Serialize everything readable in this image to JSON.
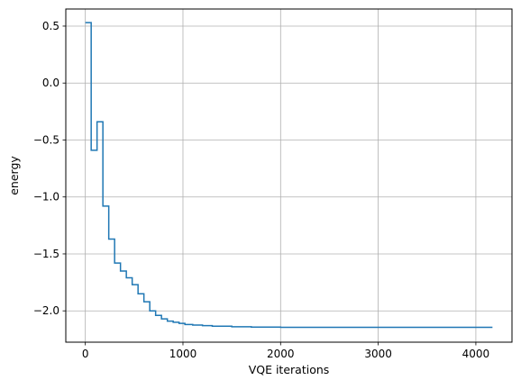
{
  "chart_data": {
    "type": "line",
    "title": "",
    "xlabel": "VQE iterations",
    "ylabel": "energy",
    "xlim": [
      -200,
      4370
    ],
    "ylim": [
      -2.275,
      0.65
    ],
    "grid": true,
    "x_ticks": [
      0,
      1000,
      2000,
      3000,
      4000
    ],
    "x_tick_labels": [
      "0",
      "1000",
      "2000",
      "3000",
      "4000"
    ],
    "y_ticks": [
      0.5,
      0.0,
      -0.5,
      -1.0,
      -1.5,
      -2.0
    ],
    "y_tick_labels": [
      "0.5",
      "0.0",
      "−0.5",
      "−1.0",
      "−1.5",
      "−2.0"
    ],
    "series": [
      {
        "color": "#1f77b4",
        "drawstyle": "steps-post",
        "x": [
          0,
          60,
          120,
          180,
          240,
          300,
          360,
          420,
          480,
          540,
          600,
          660,
          720,
          780,
          840,
          900,
          960,
          1020,
          1100,
          1200,
          1300,
          1500,
          1700,
          2000,
          2500,
          3000,
          3500,
          4170
        ],
        "y": [
          0.53,
          -0.59,
          -0.34,
          -1.08,
          -1.37,
          -1.58,
          -1.65,
          -1.71,
          -1.77,
          -1.85,
          -1.92,
          -2.0,
          -2.04,
          -2.07,
          -2.09,
          -2.1,
          -2.11,
          -2.12,
          -2.125,
          -2.13,
          -2.135,
          -2.14,
          -2.143,
          -2.145,
          -2.145,
          -2.145,
          -2.145,
          -2.145
        ]
      }
    ]
  }
}
